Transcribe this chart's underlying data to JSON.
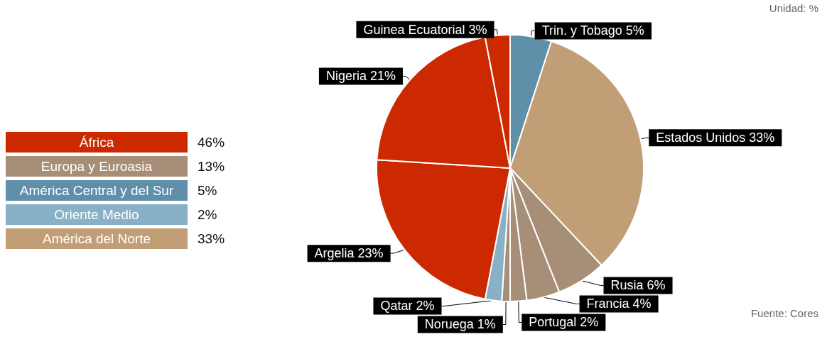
{
  "chart_data": [
    {
      "type": "pie",
      "categories": [
        "Trin. y Tobago",
        "Estados Unidos",
        "Rusia",
        "Francia",
        "Portugal",
        "Noruega",
        "Qatar",
        "Argelia",
        "Nigeria",
        "Guinea Ecuatorial"
      ],
      "values": [
        5,
        33,
        6,
        4,
        2,
        1,
        2,
        23,
        21,
        3
      ],
      "value_labels": [
        "5%",
        "33%",
        "6%",
        "4%",
        "2%",
        "1%",
        "2%",
        "23%",
        "21%",
        "3%"
      ],
      "colors": [
        "#5f8fa9",
        "#c19e76",
        "#a68f76",
        "#a68f76",
        "#a68f76",
        "#a68f76",
        "#88b0c6",
        "#cc2900",
        "#cc2900",
        "#cc2900"
      ],
      "annotations": [
        "Unidad: %",
        "Fuente: Cores"
      ]
    },
    {
      "type": "other",
      "categories": [
        "África",
        "Europa y Euroasia",
        "América Central y del Sur",
        "Oriente Medio",
        "América del Norte"
      ],
      "values": [
        46,
        13,
        5,
        2,
        33
      ],
      "value_labels": [
        "46%",
        "13%",
        "5%",
        "2%",
        "33%"
      ],
      "colors": [
        "#cc2900",
        "#a68f76",
        "#5f8fa9",
        "#88b0c6",
        "#c19e76"
      ]
    }
  ]
}
